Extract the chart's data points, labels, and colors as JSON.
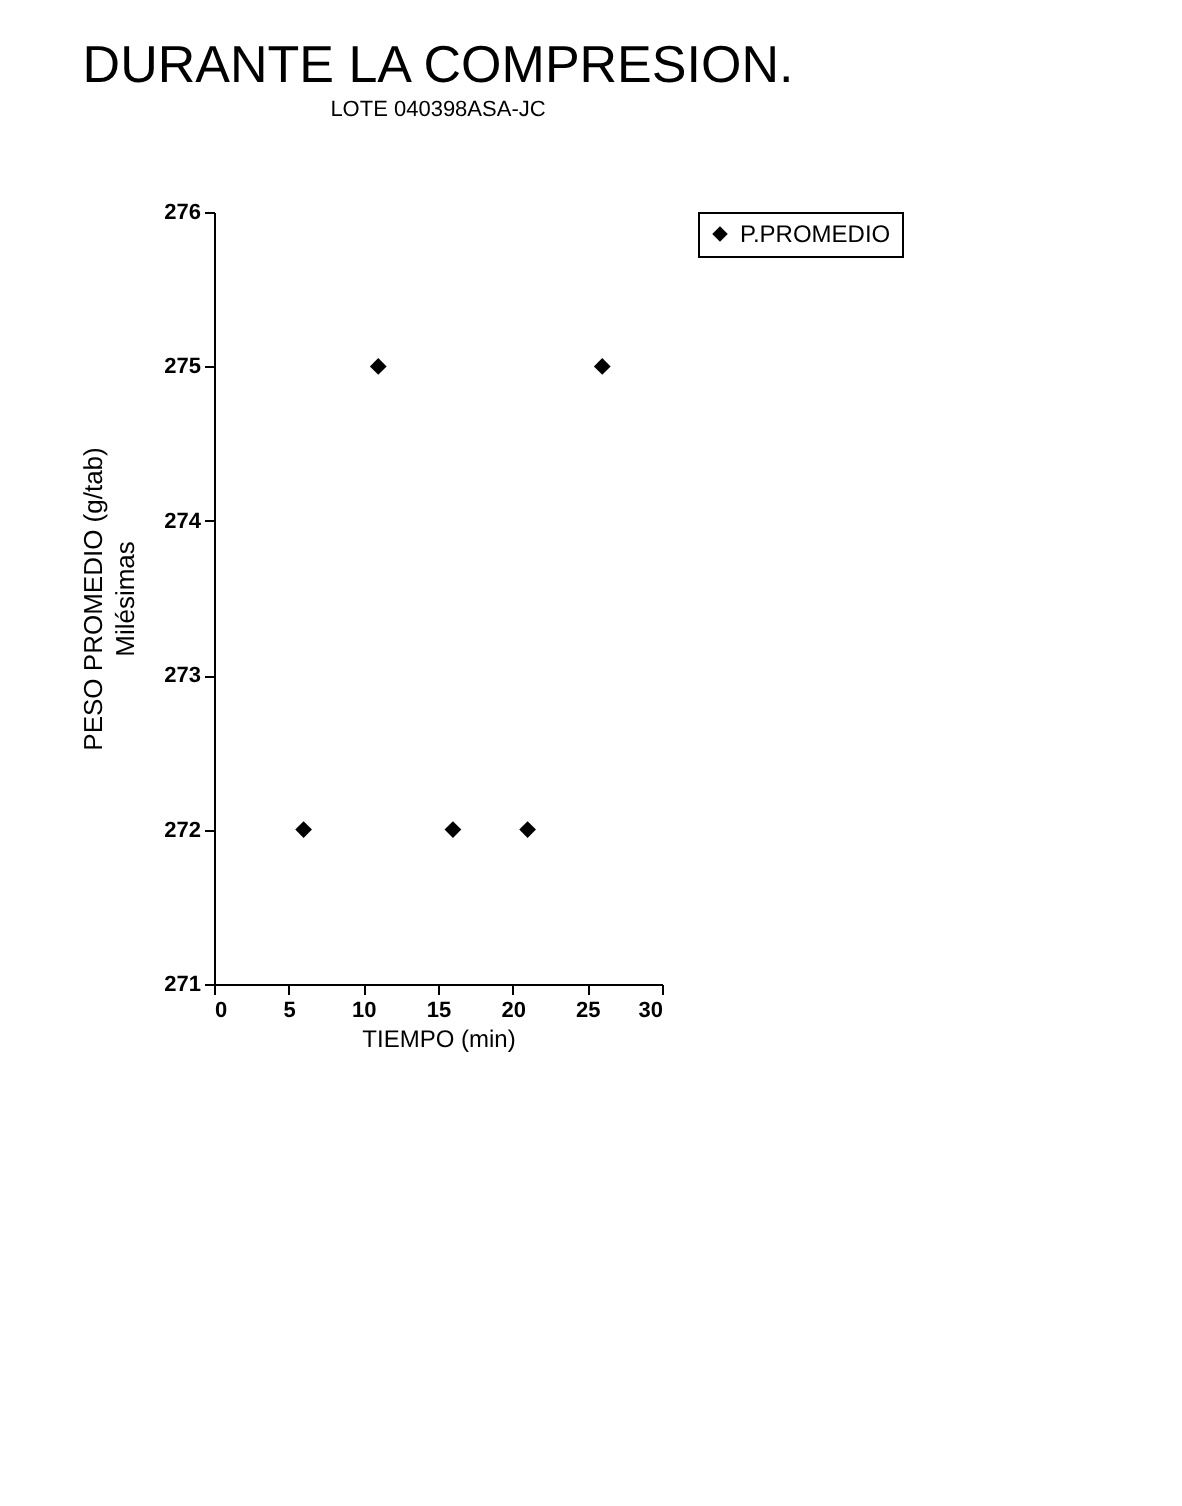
{
  "chart_data": {
    "type": "scatter",
    "title": "DURANTE LA COMPRESION.",
    "subtitle": "LOTE 040398ASA-JC",
    "xlabel": "TIEMPO (min)",
    "ylabel": "PESO PROMEDIO (g/tab)\nMilésimas",
    "x": [
      6,
      11,
      16,
      21,
      26
    ],
    "series": [
      {
        "name": "P.PROMEDIO",
        "color": "#000000",
        "values": [
          272,
          275,
          272,
          272,
          275
        ]
      }
    ],
    "xlim": [
      0,
      30
    ],
    "xticks": [
      0,
      5,
      10,
      15,
      20,
      25,
      30
    ],
    "ylim": [
      271,
      276
    ],
    "yticks": [
      271,
      272,
      273,
      274,
      275,
      276
    ],
    "grid": false,
    "legend": "right",
    "marker": "diamond"
  }
}
